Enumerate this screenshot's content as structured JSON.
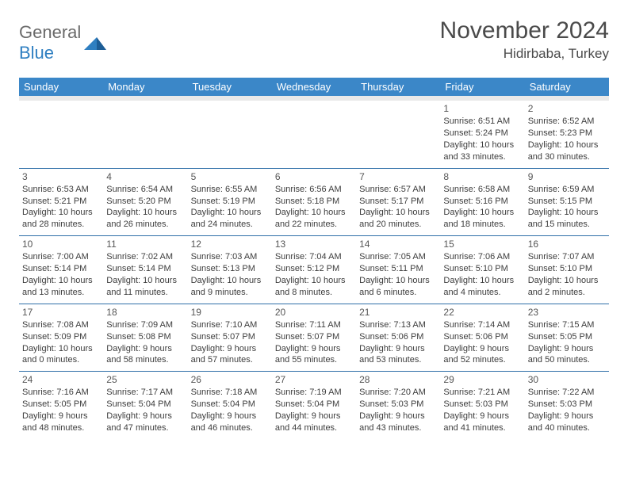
{
  "logo": {
    "text_general": "General",
    "text_blue": "Blue"
  },
  "header": {
    "month": "November 2024",
    "location": "Hidirbaba, Turkey"
  },
  "days_of_week": [
    "Sunday",
    "Monday",
    "Tuesday",
    "Wednesday",
    "Thursday",
    "Friday",
    "Saturday"
  ],
  "colors": {
    "header_bg": "#3b87c8",
    "header_text": "#ffffff",
    "row_border": "#2f6fa8",
    "spacer_bg": "#e9e9e9",
    "body_text": "#3d3d3d",
    "logo_gray": "#6a6a6a",
    "logo_blue": "#2f7fc1",
    "title_color": "#4a4a4a"
  },
  "typography": {
    "month_fontsize": 30,
    "location_fontsize": 17,
    "header_fontsize": 13,
    "cell_fontsize": 11,
    "daynum_fontsize": 12
  },
  "weeks": [
    [
      null,
      null,
      null,
      null,
      null,
      {
        "n": "1",
        "sunrise": "Sunrise: 6:51 AM",
        "sunset": "Sunset: 5:24 PM",
        "day1": "Daylight: 10 hours",
        "day2": "and 33 minutes."
      },
      {
        "n": "2",
        "sunrise": "Sunrise: 6:52 AM",
        "sunset": "Sunset: 5:23 PM",
        "day1": "Daylight: 10 hours",
        "day2": "and 30 minutes."
      }
    ],
    [
      {
        "n": "3",
        "sunrise": "Sunrise: 6:53 AM",
        "sunset": "Sunset: 5:21 PM",
        "day1": "Daylight: 10 hours",
        "day2": "and 28 minutes."
      },
      {
        "n": "4",
        "sunrise": "Sunrise: 6:54 AM",
        "sunset": "Sunset: 5:20 PM",
        "day1": "Daylight: 10 hours",
        "day2": "and 26 minutes."
      },
      {
        "n": "5",
        "sunrise": "Sunrise: 6:55 AM",
        "sunset": "Sunset: 5:19 PM",
        "day1": "Daylight: 10 hours",
        "day2": "and 24 minutes."
      },
      {
        "n": "6",
        "sunrise": "Sunrise: 6:56 AM",
        "sunset": "Sunset: 5:18 PM",
        "day1": "Daylight: 10 hours",
        "day2": "and 22 minutes."
      },
      {
        "n": "7",
        "sunrise": "Sunrise: 6:57 AM",
        "sunset": "Sunset: 5:17 PM",
        "day1": "Daylight: 10 hours",
        "day2": "and 20 minutes."
      },
      {
        "n": "8",
        "sunrise": "Sunrise: 6:58 AM",
        "sunset": "Sunset: 5:16 PM",
        "day1": "Daylight: 10 hours",
        "day2": "and 18 minutes."
      },
      {
        "n": "9",
        "sunrise": "Sunrise: 6:59 AM",
        "sunset": "Sunset: 5:15 PM",
        "day1": "Daylight: 10 hours",
        "day2": "and 15 minutes."
      }
    ],
    [
      {
        "n": "10",
        "sunrise": "Sunrise: 7:00 AM",
        "sunset": "Sunset: 5:14 PM",
        "day1": "Daylight: 10 hours",
        "day2": "and 13 minutes."
      },
      {
        "n": "11",
        "sunrise": "Sunrise: 7:02 AM",
        "sunset": "Sunset: 5:14 PM",
        "day1": "Daylight: 10 hours",
        "day2": "and 11 minutes."
      },
      {
        "n": "12",
        "sunrise": "Sunrise: 7:03 AM",
        "sunset": "Sunset: 5:13 PM",
        "day1": "Daylight: 10 hours",
        "day2": "and 9 minutes."
      },
      {
        "n": "13",
        "sunrise": "Sunrise: 7:04 AM",
        "sunset": "Sunset: 5:12 PM",
        "day1": "Daylight: 10 hours",
        "day2": "and 8 minutes."
      },
      {
        "n": "14",
        "sunrise": "Sunrise: 7:05 AM",
        "sunset": "Sunset: 5:11 PM",
        "day1": "Daylight: 10 hours",
        "day2": "and 6 minutes."
      },
      {
        "n": "15",
        "sunrise": "Sunrise: 7:06 AM",
        "sunset": "Sunset: 5:10 PM",
        "day1": "Daylight: 10 hours",
        "day2": "and 4 minutes."
      },
      {
        "n": "16",
        "sunrise": "Sunrise: 7:07 AM",
        "sunset": "Sunset: 5:10 PM",
        "day1": "Daylight: 10 hours",
        "day2": "and 2 minutes."
      }
    ],
    [
      {
        "n": "17",
        "sunrise": "Sunrise: 7:08 AM",
        "sunset": "Sunset: 5:09 PM",
        "day1": "Daylight: 10 hours",
        "day2": "and 0 minutes."
      },
      {
        "n": "18",
        "sunrise": "Sunrise: 7:09 AM",
        "sunset": "Sunset: 5:08 PM",
        "day1": "Daylight: 9 hours",
        "day2": "and 58 minutes."
      },
      {
        "n": "19",
        "sunrise": "Sunrise: 7:10 AM",
        "sunset": "Sunset: 5:07 PM",
        "day1": "Daylight: 9 hours",
        "day2": "and 57 minutes."
      },
      {
        "n": "20",
        "sunrise": "Sunrise: 7:11 AM",
        "sunset": "Sunset: 5:07 PM",
        "day1": "Daylight: 9 hours",
        "day2": "and 55 minutes."
      },
      {
        "n": "21",
        "sunrise": "Sunrise: 7:13 AM",
        "sunset": "Sunset: 5:06 PM",
        "day1": "Daylight: 9 hours",
        "day2": "and 53 minutes."
      },
      {
        "n": "22",
        "sunrise": "Sunrise: 7:14 AM",
        "sunset": "Sunset: 5:06 PM",
        "day1": "Daylight: 9 hours",
        "day2": "and 52 minutes."
      },
      {
        "n": "23",
        "sunrise": "Sunrise: 7:15 AM",
        "sunset": "Sunset: 5:05 PM",
        "day1": "Daylight: 9 hours",
        "day2": "and 50 minutes."
      }
    ],
    [
      {
        "n": "24",
        "sunrise": "Sunrise: 7:16 AM",
        "sunset": "Sunset: 5:05 PM",
        "day1": "Daylight: 9 hours",
        "day2": "and 48 minutes."
      },
      {
        "n": "25",
        "sunrise": "Sunrise: 7:17 AM",
        "sunset": "Sunset: 5:04 PM",
        "day1": "Daylight: 9 hours",
        "day2": "and 47 minutes."
      },
      {
        "n": "26",
        "sunrise": "Sunrise: 7:18 AM",
        "sunset": "Sunset: 5:04 PM",
        "day1": "Daylight: 9 hours",
        "day2": "and 46 minutes."
      },
      {
        "n": "27",
        "sunrise": "Sunrise: 7:19 AM",
        "sunset": "Sunset: 5:04 PM",
        "day1": "Daylight: 9 hours",
        "day2": "and 44 minutes."
      },
      {
        "n": "28",
        "sunrise": "Sunrise: 7:20 AM",
        "sunset": "Sunset: 5:03 PM",
        "day1": "Daylight: 9 hours",
        "day2": "and 43 minutes."
      },
      {
        "n": "29",
        "sunrise": "Sunrise: 7:21 AM",
        "sunset": "Sunset: 5:03 PM",
        "day1": "Daylight: 9 hours",
        "day2": "and 41 minutes."
      },
      {
        "n": "30",
        "sunrise": "Sunrise: 7:22 AM",
        "sunset": "Sunset: 5:03 PM",
        "day1": "Daylight: 9 hours",
        "day2": "and 40 minutes."
      }
    ]
  ]
}
